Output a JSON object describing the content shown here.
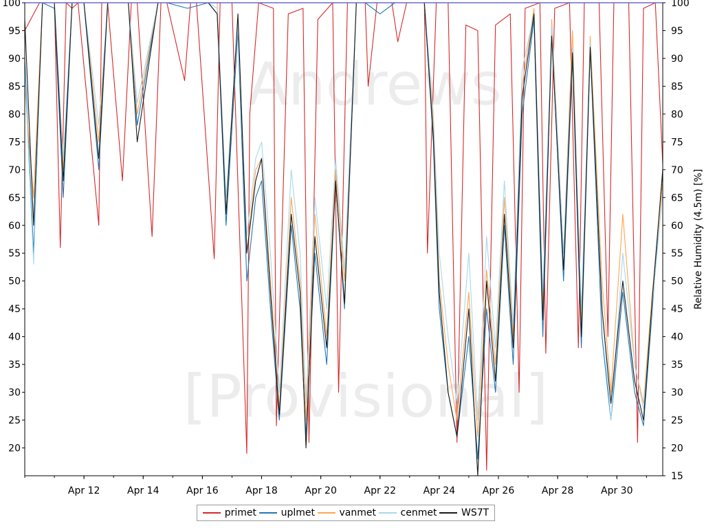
{
  "chart_data": {
    "type": "line",
    "title": "",
    "xlabel": "",
    "ylabel": "Relative Humidity (4.5m) [%]",
    "watermarks": [
      "Andrews",
      "[Provisional]"
    ],
    "ylim": [
      15,
      100
    ],
    "yticks": [
      20,
      25,
      30,
      35,
      40,
      45,
      50,
      55,
      60,
      65,
      70,
      75,
      80,
      85,
      90,
      95,
      100
    ],
    "right_axis_ticks": [
      15,
      20,
      25,
      30,
      35,
      40,
      45,
      50,
      55,
      60,
      65,
      70,
      75,
      80,
      85,
      90,
      95,
      100
    ],
    "xlim_days": [
      10.0,
      31.55
    ],
    "xticks": [
      {
        "day": 12,
        "label": "Apr 12"
      },
      {
        "day": 14,
        "label": "Apr 14"
      },
      {
        "day": 16,
        "label": "Apr 16"
      },
      {
        "day": 18,
        "label": "Apr 18"
      },
      {
        "day": 20,
        "label": "Apr 20"
      },
      {
        "day": 22,
        "label": "Apr 22"
      },
      {
        "day": 24,
        "label": "Apr 24"
      },
      {
        "day": 26,
        "label": "Apr 26"
      },
      {
        "day": 28,
        "label": "Apr 28"
      },
      {
        "day": 30,
        "label": "Apr 30"
      }
    ],
    "legend_position": "bottom-center",
    "grid": false,
    "series": [
      {
        "name": "primet",
        "color": "#d62728",
        "x": [
          10.0,
          10.5,
          11.0,
          11.2,
          11.4,
          11.6,
          11.8,
          12.5,
          12.6,
          12.8,
          13.3,
          13.6,
          13.8,
          14.3,
          14.6,
          14.8,
          15.4,
          15.6,
          15.8,
          16.4,
          16.6,
          16.8,
          17.0,
          17.5,
          17.6,
          17.9,
          18.4,
          18.5,
          18.9,
          19.4,
          19.6,
          19.9,
          20.4,
          20.6,
          20.9,
          21.5,
          21.6,
          21.9,
          22.4,
          22.6,
          22.9,
          23.5,
          23.6,
          23.9,
          24.3,
          24.6,
          24.9,
          25.3,
          25.6,
          25.9,
          26.4,
          26.7,
          26.9,
          27.4,
          27.6,
          27.9,
          28.4,
          28.7,
          28.9,
          29.4,
          29.7,
          29.9,
          30.4,
          30.7,
          30.9,
          31.3,
          31.55
        ],
        "y": [
          95,
          100,
          100,
          56,
          100,
          99,
          100,
          60,
          100,
          100,
          68,
          100,
          100,
          58,
          100,
          100,
          86,
          100,
          100,
          54,
          100,
          100,
          100,
          19,
          80,
          100,
          99,
          24,
          98,
          99,
          21,
          97,
          100,
          30,
          100,
          100,
          85,
          100,
          100,
          93,
          100,
          100,
          55,
          100,
          100,
          21,
          96,
          95,
          16,
          96,
          98,
          30,
          99,
          100,
          37,
          99,
          100,
          38,
          100,
          100,
          40,
          100,
          100,
          21,
          99,
          100,
          71
        ]
      },
      {
        "name": "uplmet",
        "color": "#1f77b4",
        "x": [
          10.0,
          10.3,
          10.6,
          11.0,
          11.3,
          11.6,
          12.0,
          12.5,
          12.8,
          13.5,
          13.8,
          14.5,
          14.8,
          15.5,
          16.2,
          16.5,
          16.8,
          17.2,
          17.5,
          17.8,
          18.0,
          18.3,
          18.6,
          19.0,
          19.3,
          19.5,
          19.8,
          20.2,
          20.5,
          20.8,
          21.2,
          21.5,
          22.0,
          22.5,
          23.0,
          23.5,
          23.8,
          24.0,
          24.3,
          24.6,
          25.0,
          25.3,
          25.6,
          25.9,
          26.2,
          26.5,
          26.8,
          27.2,
          27.5,
          27.8,
          28.2,
          28.5,
          28.8,
          29.1,
          29.5,
          29.8,
          30.2,
          30.6,
          30.9,
          31.2,
          31.55
        ],
        "y": [
          90,
          55,
          100,
          99,
          65,
          100,
          100,
          70,
          100,
          100,
          78,
          100,
          100,
          99,
          100,
          98,
          60,
          95,
          50,
          65,
          68,
          45,
          25,
          60,
          45,
          22,
          55,
          35,
          68,
          45,
          100,
          100,
          98,
          100,
          100,
          100,
          75,
          45,
          30,
          22,
          40,
          18,
          45,
          30,
          60,
          35,
          80,
          97,
          40,
          95,
          50,
          90,
          38,
          92,
          40,
          25,
          48,
          30,
          24,
          45,
          70
        ]
      },
      {
        "name": "vanmet",
        "color": "#ffa54f",
        "x": [
          10.0,
          10.3,
          10.6,
          11.0,
          11.3,
          11.6,
          12.0,
          12.5,
          12.8,
          13.5,
          13.8,
          14.5,
          14.8,
          15.5,
          16.2,
          16.5,
          16.8,
          17.2,
          17.5,
          17.8,
          18.0,
          18.3,
          18.6,
          19.0,
          19.3,
          19.5,
          19.8,
          20.2,
          20.5,
          20.8,
          21.2,
          21.5,
          22.0,
          22.5,
          23.0,
          23.5,
          23.8,
          24.0,
          24.3,
          24.6,
          25.0,
          25.3,
          25.6,
          25.9,
          26.2,
          26.5,
          26.8,
          27.2,
          27.5,
          27.8,
          28.2,
          28.5,
          28.8,
          29.1,
          29.5,
          29.8,
          30.2,
          30.6,
          30.9,
          31.2,
          31.55
        ],
        "y": [
          85,
          65,
          100,
          100,
          70,
          100,
          100,
          75,
          100,
          100,
          80,
          100,
          100,
          100,
          100,
          100,
          62,
          97,
          55,
          70,
          72,
          50,
          27,
          65,
          50,
          25,
          62,
          40,
          70,
          50,
          100,
          100,
          100,
          100,
          100,
          100,
          78,
          50,
          35,
          25,
          48,
          22,
          52,
          35,
          65,
          40,
          85,
          99,
          45,
          97,
          55,
          95,
          42,
          94,
          50,
          30,
          62,
          35,
          28,
          48,
          68
        ]
      },
      {
        "name": "cenmet",
        "color": "#a6d8f0",
        "x": [
          10.0,
          10.3,
          10.6,
          11.0,
          11.3,
          11.6,
          12.0,
          12.5,
          12.8,
          13.5,
          13.8,
          14.5,
          14.8,
          15.5,
          16.2,
          16.5,
          16.8,
          17.2,
          17.5,
          17.8,
          18.0,
          18.3,
          18.6,
          19.0,
          19.3,
          19.5,
          19.8,
          20.2,
          20.5,
          20.8,
          21.2,
          21.5,
          22.0,
          22.5,
          23.0,
          23.5,
          23.8,
          24.0,
          24.3,
          24.6,
          25.0,
          25.3,
          25.6,
          25.9,
          26.2,
          26.5,
          26.8,
          27.2,
          27.5,
          27.8,
          28.2,
          28.5,
          28.8,
          29.1,
          29.5,
          29.8,
          30.2,
          30.6,
          30.9,
          31.2,
          31.55
        ],
        "y": [
          88,
          53,
          100,
          100,
          72,
          100,
          100,
          78,
          100,
          100,
          82,
          100,
          100,
          100,
          100,
          99,
          65,
          96,
          58,
          72,
          75,
          55,
          30,
          70,
          55,
          28,
          65,
          45,
          72,
          52,
          100,
          100,
          100,
          100,
          100,
          100,
          80,
          55,
          40,
          28,
          55,
          25,
          58,
          38,
          68,
          42,
          88,
          98,
          48,
          96,
          55,
          92,
          45,
          93,
          45,
          25,
          55,
          35,
          27,
          46,
          66
        ]
      },
      {
        "name": "WS7T",
        "color": "#1a1a1a",
        "x": [
          10.0,
          10.3,
          10.6,
          11.0,
          11.3,
          11.6,
          12.0,
          12.5,
          12.8,
          13.5,
          13.8,
          14.5,
          14.8,
          15.5,
          16.2,
          16.5,
          16.8,
          17.2,
          17.5,
          17.8,
          18.0,
          18.3,
          18.6,
          19.0,
          19.3,
          19.5,
          19.8,
          20.2,
          20.5,
          20.8,
          21.2,
          21.5,
          22.0,
          22.5,
          23.0,
          23.5,
          23.8,
          24.0,
          24.3,
          24.6,
          25.0,
          25.3,
          25.6,
          25.9,
          26.2,
          26.5,
          26.8,
          27.2,
          27.5,
          27.8,
          28.2,
          28.5,
          28.8,
          29.1,
          29.5,
          29.8,
          30.2,
          30.6,
          30.9,
          31.2,
          31.55
        ],
        "y": [
          97,
          60,
          100,
          100,
          68,
          100,
          100,
          72,
          100,
          100,
          75,
          100,
          100,
          100,
          100,
          98,
          62,
          98,
          55,
          68,
          72,
          48,
          26,
          62,
          48,
          20,
          58,
          38,
          68,
          46,
          100,
          100,
          100,
          100,
          100,
          100,
          76,
          48,
          30,
          22,
          45,
          15,
          50,
          32,
          62,
          38,
          83,
          98,
          43,
          94,
          52,
          91,
          40,
          92,
          45,
          28,
          50,
          32,
          25,
          47,
          70
        ]
      }
    ]
  }
}
